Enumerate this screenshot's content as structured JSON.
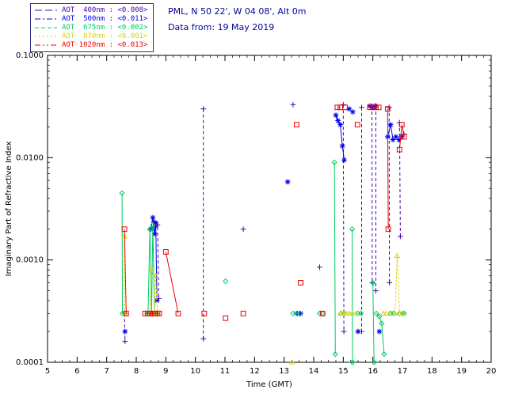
{
  "header": {
    "site_line": "PML, N 50 22', W 04 08', Alt 0m",
    "date_line": "Data from: 19 May 2019"
  },
  "legend": {
    "items": [
      {
        "id": "aot-400nm",
        "label": "AOT  400nm : <0.008>",
        "color": "#4a00b0",
        "sample_dash": "9 4"
      },
      {
        "id": "aot-500nm",
        "label": "AOT  500nm : <0.011>",
        "color": "#0000ee",
        "sample_dash": "7 3 2 3"
      },
      {
        "id": "aot-675nm",
        "label": "AOT  675nm : <0.002>",
        "color": "#00cc66",
        "sample_dash": "5 3"
      },
      {
        "id": "aot-870nm",
        "label": "AOT  870nm : <0.001>",
        "color": "#ded400",
        "sample_dash": "2 3"
      },
      {
        "id": "aot-1020nm",
        "label": "AOT 1020nm : <0.013>",
        "color": "#ee0000",
        "sample_dash": "7 3 2 3 2 3"
      }
    ]
  },
  "chart_data": {
    "type": "scatter",
    "title": "",
    "xlabel": "Time (GMT)",
    "ylabel": "Imaginary Part of Refractive Index",
    "xlim": [
      5,
      20
    ],
    "ylim": [
      0.0001,
      0.1
    ],
    "yscale": "log",
    "grid": false,
    "x_ticks": [
      5,
      6,
      7,
      8,
      9,
      10,
      11,
      12,
      13,
      14,
      15,
      16,
      17,
      18,
      19,
      20
    ],
    "y_ticks": [
      0.0001,
      0.001,
      0.01,
      0.1
    ],
    "y_tick_labels": [
      "0.0001",
      "0.0010",
      "0.0100",
      "0.1000"
    ],
    "series": [
      {
        "name": "AOT 400nm",
        "wavelength": "400nm",
        "color": "#4a00b0",
        "marker": "plus",
        "plot_dash": "4 3",
        "runs": [
          [
            [
              7.6,
              0.0003
            ],
            [
              7.62,
              0.00016
            ]
          ],
          [
            [
              8.6,
              0.0024
            ],
            [
              8.66,
              0.0021
            ],
            [
              8.72,
              0.0022
            ],
            [
              8.76,
              0.00042
            ]
          ],
          [
            [
              10.27,
              0.03
            ],
            [
              10.27,
              0.00017
            ]
          ],
          [
            [
              11.62,
              0.002
            ]
          ],
          [
            [
              13.3,
              0.033
            ]
          ],
          [
            [
              13.52,
              0.0003
            ]
          ],
          [
            [
              14.2,
              0.00085
            ]
          ],
          [
            [
              15.0,
              0.033
            ],
            [
              15.02,
              0.0002
            ]
          ],
          [
            [
              15.62,
              0.031
            ],
            [
              15.62,
              0.0002
            ]
          ],
          [
            [
              15.97,
              0.032
            ],
            [
              15.98,
              0.0006
            ]
          ],
          [
            [
              16.1,
              0.032
            ],
            [
              16.1,
              0.0005
            ]
          ],
          [
            [
              16.55,
              0.031
            ],
            [
              16.56,
              0.0006
            ]
          ],
          [
            [
              16.9,
              0.022
            ],
            [
              16.93,
              0.0017
            ]
          ],
          [
            [
              17.05,
              0.017
            ]
          ]
        ]
      },
      {
        "name": "AOT 500nm",
        "wavelength": "500nm",
        "color": "#0000ee",
        "marker": "asterisk",
        "plot_dash": "",
        "runs": [
          [
            [
              7.62,
              0.0002
            ]
          ],
          [
            [
              8.5,
              0.002
            ],
            [
              8.56,
              0.0026
            ],
            [
              8.62,
              0.0018
            ],
            [
              8.66,
              0.0023
            ],
            [
              8.7,
              0.0004
            ]
          ],
          [
            [
              13.12,
              0.0058
            ]
          ],
          [
            [
              13.45,
              0.0003
            ],
            [
              13.56,
              0.0003
            ]
          ],
          [
            [
              14.75,
              0.026
            ],
            [
              14.82,
              0.023
            ],
            [
              14.9,
              0.021
            ],
            [
              14.97,
              0.013
            ],
            [
              15.03,
              0.0095
            ]
          ],
          [
            [
              15.2,
              0.03
            ],
            [
              15.32,
              0.028
            ]
          ],
          [
            [
              15.5,
              0.0002
            ]
          ],
          [
            [
              15.9,
              0.032
            ],
            [
              16.0,
              0.031
            ],
            [
              16.08,
              0.032
            ]
          ],
          [
            [
              16.22,
              0.0002
            ]
          ],
          [
            [
              16.5,
              0.016
            ],
            [
              16.6,
              0.021
            ],
            [
              16.68,
              0.015
            ],
            [
              16.78,
              0.016
            ],
            [
              16.88,
              0.015
            ],
            [
              16.98,
              0.016
            ]
          ]
        ]
      },
      {
        "name": "AOT 675nm",
        "wavelength": "675nm",
        "color": "#00cc66",
        "marker": "diamond",
        "plot_dash": "",
        "runs": [
          [
            [
              7.52,
              0.0045
            ],
            [
              7.53,
              0.0003
            ],
            [
              7.62,
              0.0003
            ]
          ],
          [
            [
              8.4,
              0.0003
            ],
            [
              8.46,
              0.002
            ],
            [
              8.52,
              0.0003
            ],
            [
              8.56,
              0.0022
            ],
            [
              8.62,
              0.0003
            ],
            [
              8.68,
              0.0003
            ]
          ],
          [
            [
              11.02,
              0.00062
            ]
          ],
          [
            [
              13.3,
              0.0003
            ],
            [
              13.42,
              0.0003
            ],
            [
              13.54,
              0.0003
            ]
          ],
          [
            [
              14.2,
              0.0003
            ],
            [
              14.3,
              0.0003
            ]
          ],
          [
            [
              14.7,
              0.009
            ],
            [
              14.73,
              0.00012
            ]
          ],
          [
            [
              14.92,
              0.0003
            ],
            [
              15.02,
              0.0003
            ]
          ],
          [
            [
              15.3,
              0.002
            ],
            [
              15.31,
              0.0001
            ]
          ],
          [
            [
              15.5,
              0.0003
            ],
            [
              15.6,
              0.0003
            ]
          ],
          [
            [
              16.0,
              0.0006
            ],
            [
              16.04,
              0.0001
            ]
          ],
          [
            [
              16.12,
              0.0003
            ],
            [
              16.22,
              0.00028
            ],
            [
              16.3,
              0.00024
            ],
            [
              16.38,
              0.00012
            ]
          ],
          [
            [
              16.6,
              0.0003
            ],
            [
              16.7,
              0.0003
            ]
          ],
          [
            [
              16.9,
              0.0003
            ],
            [
              17.0,
              0.0003
            ],
            [
              17.06,
              0.0003
            ]
          ]
        ]
      },
      {
        "name": "AOT 870nm",
        "wavelength": "870nm",
        "color": "#ded400",
        "marker": "triangle",
        "plot_dash": "3 2",
        "runs": [
          [
            [
              7.6,
              0.0017
            ],
            [
              7.61,
              0.0003
            ]
          ],
          [
            [
              8.46,
              0.0003
            ],
            [
              8.52,
              0.0008
            ],
            [
              8.58,
              0.0007
            ],
            [
              8.62,
              0.0003
            ],
            [
              8.66,
              0.0007
            ],
            [
              8.72,
              0.0003
            ]
          ],
          [
            [
              13.27,
              0.0001
            ]
          ],
          [
            [
              14.9,
              0.0003
            ],
            [
              15.0,
              0.0003
            ],
            [
              15.1,
              0.0003
            ],
            [
              15.2,
              0.0003
            ],
            [
              15.3,
              0.0003
            ],
            [
              15.42,
              0.0003
            ]
          ],
          [
            [
              16.35,
              0.0003
            ],
            [
              16.45,
              0.0003
            ],
            [
              16.56,
              0.0003
            ]
          ],
          [
            [
              16.75,
              0.0003
            ],
            [
              16.82,
              0.0011
            ],
            [
              16.9,
              0.0003
            ],
            [
              17.0,
              0.0003
            ]
          ]
        ]
      },
      {
        "name": "AOT 1020nm",
        "wavelength": "1020nm",
        "color": "#ee0000",
        "marker": "square",
        "plot_dash": "",
        "runs": [
          [
            [
              7.6,
              0.002
            ],
            [
              7.66,
              0.0003
            ]
          ],
          [
            [
              8.3,
              0.0003
            ],
            [
              8.38,
              0.0003
            ],
            [
              8.46,
              0.0003
            ],
            [
              8.56,
              0.0003
            ],
            [
              8.64,
              0.0003
            ],
            [
              8.72,
              0.0003
            ],
            [
              8.78,
              0.0003
            ]
          ],
          [
            [
              9.0,
              0.0012
            ],
            [
              9.42,
              0.0003
            ]
          ],
          [
            [
              10.3,
              0.0003
            ]
          ],
          [
            [
              11.02,
              0.00027
            ]
          ],
          [
            [
              11.62,
              0.0003
            ]
          ],
          [
            [
              13.42,
              0.021
            ]
          ],
          [
            [
              13.56,
              0.0006
            ]
          ],
          [
            [
              14.3,
              0.0003
            ]
          ],
          [
            [
              14.8,
              0.031
            ],
            [
              14.9,
              0.031
            ]
          ],
          [
            [
              15.06,
              0.031
            ]
          ],
          [
            [
              15.48,
              0.021
            ]
          ],
          [
            [
              15.9,
              0.031
            ],
            [
              16.0,
              0.031
            ],
            [
              16.1,
              0.031
            ],
            [
              16.2,
              0.031
            ]
          ],
          [
            [
              16.5,
              0.03
            ],
            [
              16.52,
              0.002
            ]
          ],
          [
            [
              16.9,
              0.012
            ],
            [
              16.98,
              0.021
            ],
            [
              17.06,
              0.016
            ]
          ]
        ]
      }
    ]
  }
}
